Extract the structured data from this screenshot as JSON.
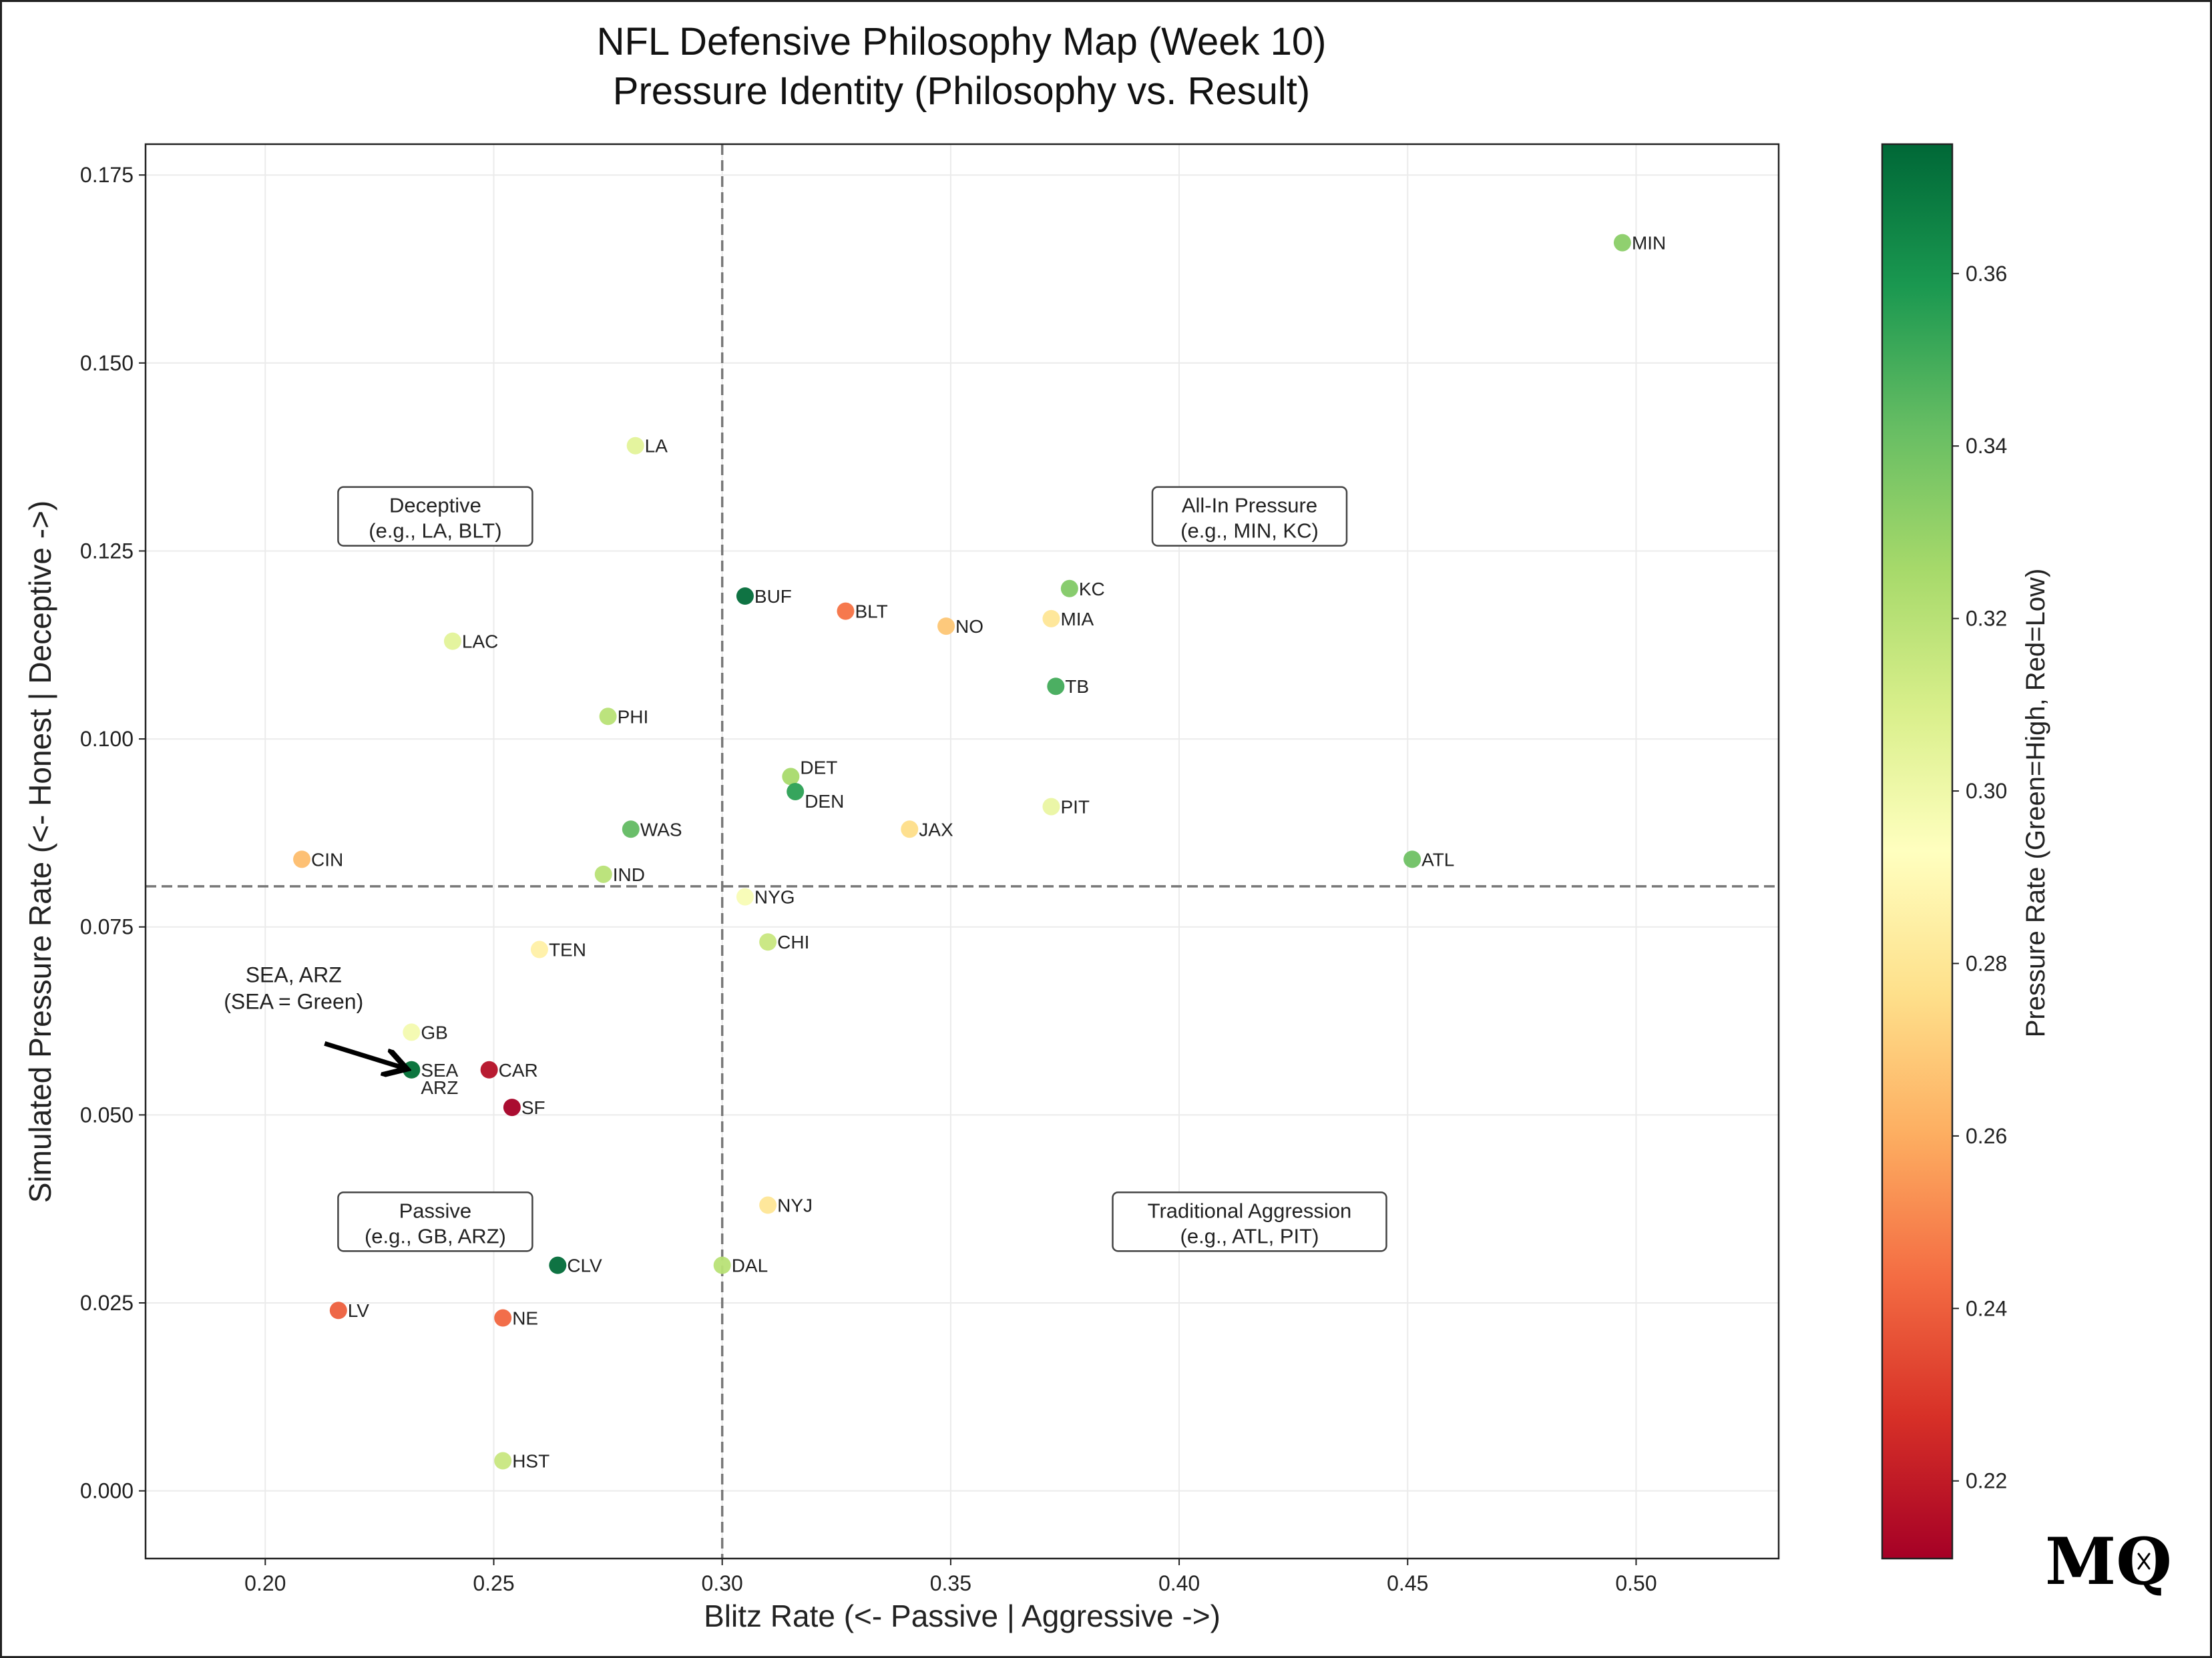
{
  "chart_data": {
    "type": "scatter",
    "title": "NFL Defensive Philosophy Map (Week 10)",
    "subtitle": "Pressure Identity (Philosophy vs. Result)",
    "xlabel": "Blitz Rate (<- Passive | Aggressive ->)",
    "ylabel": "Simulated Pressure Rate (<- Honest | Deceptive ->)",
    "xlim": [
      0.1738,
      0.5312
    ],
    "ylim": [
      -0.009,
      0.1791
    ],
    "xticks": [
      0.2,
      0.25,
      0.3,
      0.35,
      0.4,
      0.45,
      0.5
    ],
    "xtick_labels": [
      "0.20",
      "0.25",
      "0.30",
      "0.35",
      "0.40",
      "0.45",
      "0.50"
    ],
    "yticks": [
      0.0,
      0.025,
      0.05,
      0.075,
      0.1,
      0.125,
      0.15,
      0.175
    ],
    "ytick_labels": [
      "0.000",
      "0.025",
      "0.050",
      "0.075",
      "0.100",
      "0.125",
      "0.150",
      "0.175"
    ],
    "grid": true,
    "reference_lines": {
      "x": 0.3,
      "y": 0.0804
    },
    "colorbar": {
      "label": "Pressure Rate (Green=High, Red=Low)",
      "colormap": "RdYlGn",
      "range": [
        0.211,
        0.375
      ],
      "ticks": [
        0.22,
        0.24,
        0.26,
        0.28,
        0.3,
        0.32,
        0.34,
        0.36
      ],
      "tick_labels": [
        "0.22",
        "0.24",
        "0.26",
        "0.28",
        "0.30",
        "0.32",
        "0.34",
        "0.36"
      ]
    },
    "points": [
      {
        "team": "MIN",
        "blitz": 0.497,
        "sim_pressure": 0.166,
        "pressure": 0.333
      },
      {
        "team": "LA",
        "blitz": 0.281,
        "sim_pressure": 0.139,
        "pressure": 0.305
      },
      {
        "team": "KC",
        "blitz": 0.376,
        "sim_pressure": 0.12,
        "pressure": 0.335
      },
      {
        "team": "BUF",
        "blitz": 0.305,
        "sim_pressure": 0.119,
        "pressure": 0.374
      },
      {
        "team": "BLT",
        "blitz": 0.327,
        "sim_pressure": 0.117,
        "pressure": 0.245
      },
      {
        "team": "MIA",
        "blitz": 0.372,
        "sim_pressure": 0.116,
        "pressure": 0.28
      },
      {
        "team": "NO",
        "blitz": 0.349,
        "sim_pressure": 0.115,
        "pressure": 0.268
      },
      {
        "team": "LAC",
        "blitz": 0.241,
        "sim_pressure": 0.113,
        "pressure": 0.305
      },
      {
        "team": "TB",
        "blitz": 0.373,
        "sim_pressure": 0.107,
        "pressure": 0.35
      },
      {
        "team": "PHI",
        "blitz": 0.275,
        "sim_pressure": 0.103,
        "pressure": 0.32
      },
      {
        "team": "DET",
        "blitz": 0.315,
        "sim_pressure": 0.095,
        "pressure": 0.325
      },
      {
        "team": "DEN",
        "blitz": 0.316,
        "sim_pressure": 0.093,
        "pressure": 0.355
      },
      {
        "team": "PIT",
        "blitz": 0.372,
        "sim_pressure": 0.091,
        "pressure": 0.302
      },
      {
        "team": "WAS",
        "blitz": 0.28,
        "sim_pressure": 0.088,
        "pressure": 0.343
      },
      {
        "team": "JAX",
        "blitz": 0.341,
        "sim_pressure": 0.088,
        "pressure": 0.276
      },
      {
        "team": "CIN",
        "blitz": 0.208,
        "sim_pressure": 0.084,
        "pressure": 0.265
      },
      {
        "team": "ATL",
        "blitz": 0.451,
        "sim_pressure": 0.084,
        "pressure": 0.34
      },
      {
        "team": "IND",
        "blitz": 0.274,
        "sim_pressure": 0.082,
        "pressure": 0.32
      },
      {
        "team": "NYG",
        "blitz": 0.305,
        "sim_pressure": 0.079,
        "pressure": 0.296
      },
      {
        "team": "CHI",
        "blitz": 0.31,
        "sim_pressure": 0.073,
        "pressure": 0.315
      },
      {
        "team": "TEN",
        "blitz": 0.26,
        "sim_pressure": 0.072,
        "pressure": 0.285
      },
      {
        "team": "GB",
        "blitz": 0.232,
        "sim_pressure": 0.061,
        "pressure": 0.298
      },
      {
        "team": "ARZ",
        "blitz": 0.232,
        "sim_pressure": 0.056,
        "pressure": 0.33
      },
      {
        "team": "SEA",
        "blitz": 0.232,
        "sim_pressure": 0.056,
        "pressure": 0.372
      },
      {
        "team": "CAR",
        "blitz": 0.249,
        "sim_pressure": 0.056,
        "pressure": 0.216
      },
      {
        "team": "SF",
        "blitz": 0.254,
        "sim_pressure": 0.051,
        "pressure": 0.211
      },
      {
        "team": "NYJ",
        "blitz": 0.31,
        "sim_pressure": 0.038,
        "pressure": 0.28
      },
      {
        "team": "CLV",
        "blitz": 0.264,
        "sim_pressure": 0.03,
        "pressure": 0.374
      },
      {
        "team": "DAL",
        "blitz": 0.3,
        "sim_pressure": 0.03,
        "pressure": 0.32
      },
      {
        "team": "LV",
        "blitz": 0.216,
        "sim_pressure": 0.024,
        "pressure": 0.24
      },
      {
        "team": "NE",
        "blitz": 0.252,
        "sim_pressure": 0.023,
        "pressure": 0.242
      },
      {
        "team": "HST",
        "blitz": 0.252,
        "sim_pressure": 0.004,
        "pressure": 0.315
      }
    ],
    "quadrant_labels": [
      {
        "lines": [
          "Deceptive",
          "(e.g., LA, BLT)"
        ],
        "x": 0.2372,
        "y": 0.1296
      },
      {
        "lines": [
          "All-In Pressure",
          "(e.g., MIN, KC)"
        ],
        "x": 0.4154,
        "y": 0.1296
      },
      {
        "lines": [
          "Passive",
          "(e.g., GB, ARZ)"
        ],
        "x": 0.2372,
        "y": 0.0358
      },
      {
        "lines": [
          "Traditional Aggression",
          "(e.g., ATL, PIT)"
        ],
        "x": 0.4154,
        "y": 0.0358
      }
    ],
    "callout": {
      "lines": [
        "SEA, ARZ",
        "(SEA = Green)"
      ],
      "x": 0.2062,
      "y": 0.0673,
      "arrow_from": [
        0.213,
        0.0595
      ],
      "arrow_to": [
        0.23,
        0.0563
      ]
    }
  },
  "logo": {
    "text": "MQ",
    "subscript": "x"
  }
}
